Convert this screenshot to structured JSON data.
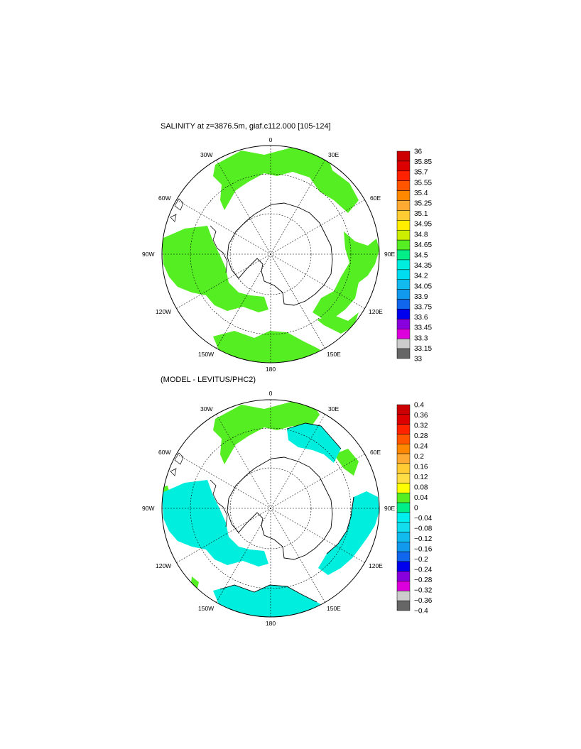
{
  "panels": [
    {
      "title": "SALINITY at z=3876.5m, giaf.c112.000 [105-124]",
      "longitude_labels": {
        "top": "0",
        "r30": "30E",
        "r60": "60E",
        "r90": "90E",
        "r120": "120E",
        "r150": "150E",
        "bottom": "180",
        "l150": "150W",
        "l120": "120W",
        "l90": "90W",
        "l60": "60W",
        "l30": "30W"
      },
      "colorbar": {
        "labels": [
          "36",
          "35.85",
          "35.7",
          "35.55",
          "35.4",
          "35.25",
          "35.1",
          "34.95",
          "34.8",
          "34.65",
          "34.5",
          "34.35",
          "34.2",
          "34.05",
          "33.9",
          "33.75",
          "33.6",
          "33.45",
          "33.3",
          "33.15",
          "33"
        ],
        "colors": [
          "#cc0000",
          "#dd0000",
          "#ff2200",
          "#ff5500",
          "#ff8800",
          "#ffaa33",
          "#ffcc33",
          "#ffee00",
          "#ccee00",
          "#55ee22",
          "#00ee88",
          "#00eedd",
          "#00ddee",
          "#11bbee",
          "#1199ee",
          "#1166ee",
          "#0000ee",
          "#8800dd",
          "#dd00dd",
          "#cccccc"
        ],
        "gray_bottom": "#666666"
      },
      "field_color": "#55ee22"
    },
    {
      "title": "(MODEL - LEVITUS/PHC2)",
      "longitude_labels": {
        "top": "0",
        "r30": "30E",
        "r60": "60E",
        "r90": "90E",
        "r120": "120E",
        "r150": "150E",
        "bottom": "180",
        "l150": "150W",
        "l120": "120W",
        "l90": "90W",
        "l60": "60W",
        "l30": "30W"
      },
      "colorbar": {
        "labels": [
          "0.4",
          "0.36",
          "0.32",
          "0.28",
          "0.24",
          "0.2",
          "0.16",
          "0.12",
          "0.08",
          "0.04",
          "0",
          "−0.04",
          "−0.08",
          "−0.12",
          "−0.16",
          "−0.2",
          "−0.24",
          "−0.28",
          "−0.32",
          "−0.36",
          "−0.4"
        ],
        "colors": [
          "#cc0000",
          "#dd0000",
          "#ff2200",
          "#ff5500",
          "#ff8800",
          "#ffaa33",
          "#ffcc33",
          "#ffdd44",
          "#ffff00",
          "#55ee22",
          "#00ee88",
          "#00eeee",
          "#11ddee",
          "#11bbee",
          "#1199ee",
          "#1166ee",
          "#0000ee",
          "#8800dd",
          "#dd00dd",
          "#cccccc"
        ],
        "gray_bottom": "#666666"
      },
      "field_color_green": "#55ee22",
      "field_color_cyan": "#00eedd"
    }
  ]
}
